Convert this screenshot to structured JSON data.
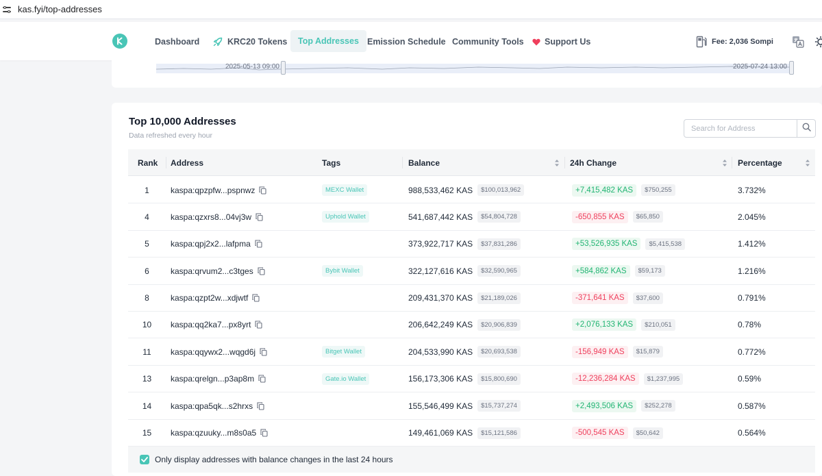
{
  "browser": {
    "url": "kas.fyi/top-addresses"
  },
  "nav": {
    "items": [
      {
        "label": "Dashboard",
        "icon": "none"
      },
      {
        "label": "KRC20 Tokens",
        "icon": "rocket-icon"
      },
      {
        "label": "Top Addresses",
        "icon": "none",
        "active": true
      },
      {
        "label": "Emission Schedule",
        "icon": "none"
      },
      {
        "label": "Community Tools",
        "icon": "none"
      },
      {
        "label": "Support Us",
        "icon": "heart-icon"
      }
    ],
    "fee": "Fee: 2,036 Sompi"
  },
  "range": {
    "start": "2025-05-13 09:00",
    "end": "2025-07-24 13:00"
  },
  "table": {
    "title": "Top 10,000 Addresses",
    "subtitle": "Data refreshed every hour",
    "search_placeholder": "Search for Address",
    "columns": [
      "Rank",
      "Address",
      "Tags",
      "Balance",
      "24h Change",
      "Percentage"
    ],
    "rows": [
      {
        "rank": "1",
        "address": "kaspa:qpzpfw...pspnwz",
        "tag": "MEXC Wallet",
        "balance": "988,533,462 KAS",
        "balance_usd": "$100,013,962",
        "change": "+7,415,482 KAS",
        "change_usd": "$750,255",
        "change_dir": "pos",
        "percentage": "3.732%"
      },
      {
        "rank": "4",
        "address": "kaspa:qzxrs8...04vj3w",
        "tag": "Uphold Wallet",
        "balance": "541,687,442 KAS",
        "balance_usd": "$54,804,728",
        "change": "-650,855 KAS",
        "change_usd": "$65,850",
        "change_dir": "neg",
        "percentage": "2.045%"
      },
      {
        "rank": "5",
        "address": "kaspa:qpj2x2...lafpma",
        "tag": "",
        "balance": "373,922,717 KAS",
        "balance_usd": "$37,831,286",
        "change": "+53,526,935 KAS",
        "change_usd": "$5,415,538",
        "change_dir": "pos",
        "percentage": "1.412%"
      },
      {
        "rank": "6",
        "address": "kaspa:qrvum2...c3tges",
        "tag": "Bybit Wallet",
        "balance": "322,127,616 KAS",
        "balance_usd": "$32,590,965",
        "change": "+584,862 KAS",
        "change_usd": "$59,173",
        "change_dir": "pos",
        "percentage": "1.216%"
      },
      {
        "rank": "8",
        "address": "kaspa:qzpt2w...xdjwtf",
        "tag": "",
        "balance": "209,431,370 KAS",
        "balance_usd": "$21,189,026",
        "change": "-371,641 KAS",
        "change_usd": "$37,600",
        "change_dir": "neg",
        "percentage": "0.791%"
      },
      {
        "rank": "10",
        "address": "kaspa:qq2ka7...px8yrt",
        "tag": "",
        "balance": "206,642,249 KAS",
        "balance_usd": "$20,906,839",
        "change": "+2,076,133 KAS",
        "change_usd": "$210,051",
        "change_dir": "pos",
        "percentage": "0.78%"
      },
      {
        "rank": "11",
        "address": "kaspa:qqywx2...wqgd6j",
        "tag": "Bitget Wallet",
        "balance": "204,533,990 KAS",
        "balance_usd": "$20,693,538",
        "change": "-156,949 KAS",
        "change_usd": "$15,879",
        "change_dir": "neg",
        "percentage": "0.772%"
      },
      {
        "rank": "13",
        "address": "kaspa:qrelgn...p3ap8m",
        "tag": "Gate.io Wallet",
        "balance": "156,173,306 KAS",
        "balance_usd": "$15,800,690",
        "change": "-12,236,284 KAS",
        "change_usd": "$1,237,995",
        "change_dir": "neg",
        "percentage": "0.59%"
      },
      {
        "rank": "14",
        "address": "kaspa:qpa5qk...s2hrxs",
        "tag": "",
        "balance": "155,546,499 KAS",
        "balance_usd": "$15,737,274",
        "change": "+2,493,506 KAS",
        "change_usd": "$252,278",
        "change_dir": "pos",
        "percentage": "0.587%"
      },
      {
        "rank": "15",
        "address": "kaspa:qzuuky...m8s0a5",
        "tag": "",
        "balance": "149,461,069 KAS",
        "balance_usd": "$15,121,586",
        "change": "-500,545 KAS",
        "change_usd": "$50,642",
        "change_dir": "neg",
        "percentage": "0.564%"
      }
    ],
    "filter_label": "Only display addresses with balance changes in the last 24 hours",
    "filter_checked": true
  },
  "colors": {
    "accent": "#49c5b6",
    "positive": "#22b573",
    "negative": "#ef3f5c"
  }
}
